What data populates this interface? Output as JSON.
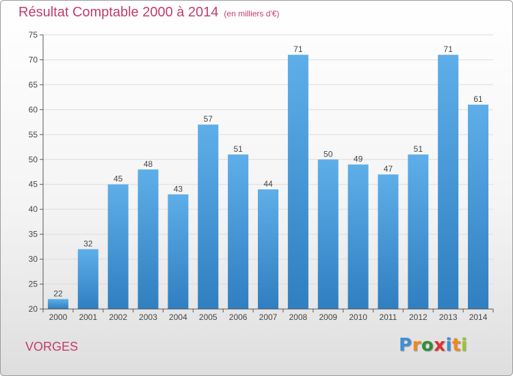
{
  "chart_data": {
    "type": "bar",
    "title": "Résultat Comptable 2000 à 2014",
    "subtitle": "(en milliers d'€)",
    "categories": [
      "2000",
      "2001",
      "2002",
      "2003",
      "2004",
      "2005",
      "2006",
      "2007",
      "2008",
      "2009",
      "2010",
      "2011",
      "2012",
      "2013",
      "2014"
    ],
    "values": [
      22,
      32,
      45,
      48,
      43,
      57,
      51,
      44,
      71,
      50,
      49,
      47,
      51,
      71,
      61
    ],
    "ylim": [
      20,
      75
    ],
    "yticks": [
      20,
      25,
      30,
      35,
      40,
      45,
      50,
      55,
      60,
      65,
      70,
      75
    ],
    "xlabel": "",
    "ylabel": "",
    "grid": true,
    "bar_color": "#3c8fd4"
  },
  "footer": {
    "city": "VORGES",
    "logo_letters": [
      "P",
      "r",
      "o",
      "x",
      "i",
      "t",
      "i"
    ],
    "logo_colors": [
      "#3f8ed6",
      "#f08a1c",
      "#2f8f3a",
      "#e0312c",
      "#3f8ed6",
      "#f08a1c",
      "#9bc534"
    ]
  }
}
